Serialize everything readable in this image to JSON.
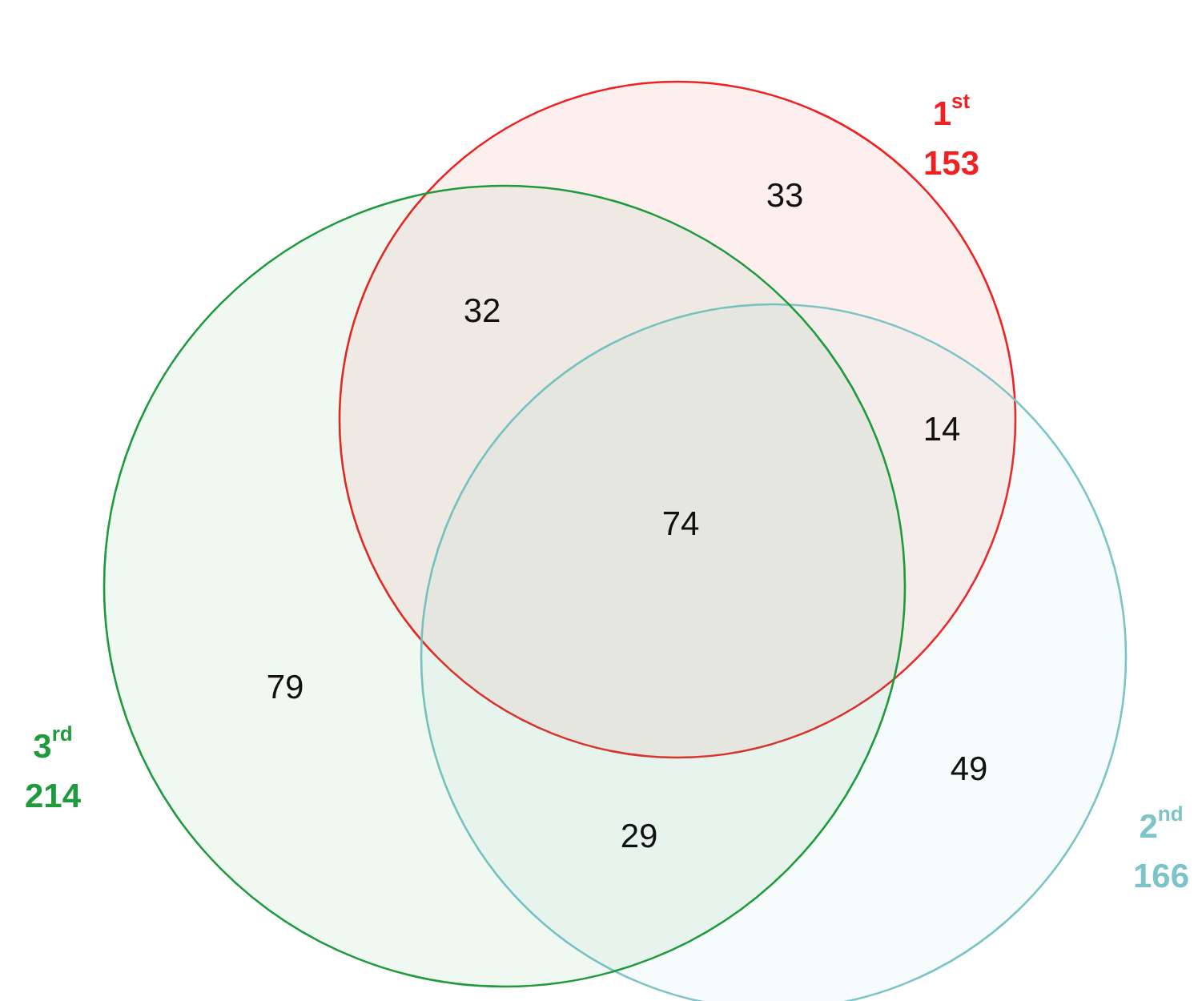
{
  "chart_data": {
    "type": "other",
    "categories": [
      "1$^{st}$",
      "2$^{nd}$",
      "3$^{rd}$"
    ],
    "values": [
      153,
      166,
      214
    ],
    "colors": [
      "#ee2222",
      "#7cc4c8",
      "#1f9a3c"
    ],
    "data_labels": true,
    "annotations": [
      "33",
      "49",
      "79",
      "14",
      "32",
      "29",
      "74"
    ]
  }
}
